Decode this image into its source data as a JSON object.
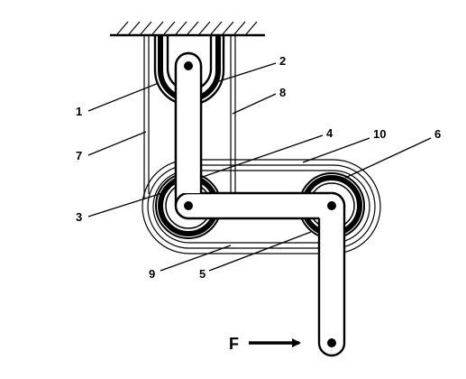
{
  "labels": {
    "l1": "1",
    "l2": "2",
    "l3": "3",
    "l4": "4",
    "l5": "5",
    "l6": "6",
    "l7": "7",
    "l8": "8",
    "l9": "9",
    "l10": "10"
  },
  "force": {
    "label": "F"
  },
  "colors": {
    "ink": "#000000",
    "background": "#ffffff"
  }
}
